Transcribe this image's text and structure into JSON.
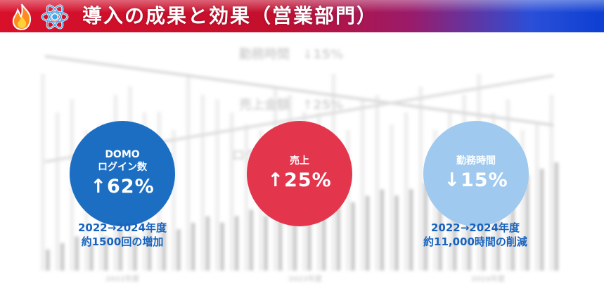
{
  "header": {
    "title": "導入の成果と効果（営業部門）",
    "colors": {
      "left": "#d8102a",
      "right": "#0d3fd2"
    }
  },
  "background_chart": {
    "labels": [
      "勤務時間　↓15%",
      "売上金額　↑25%",
      "ログイン数　↑62%"
    ],
    "years": [
      "2022年度",
      "2023年度",
      "2024年度"
    ]
  },
  "metrics": [
    {
      "label_lines": [
        "DOMO",
        "ログイン数"
      ],
      "value": "↑62%",
      "color": "#1c6ec2"
    },
    {
      "label_lines": [
        "売上"
      ],
      "value": "↑25%",
      "color": "#e3354b"
    },
    {
      "label_lines": [
        "勤務時間"
      ],
      "value": "↓15%",
      "color": "#9fc9ee"
    }
  ],
  "captions": {
    "login": [
      "2022→2024年度",
      "約1500回の増加"
    ],
    "hours": [
      "2022→2024年度",
      "約11,000時間の削減"
    ]
  }
}
